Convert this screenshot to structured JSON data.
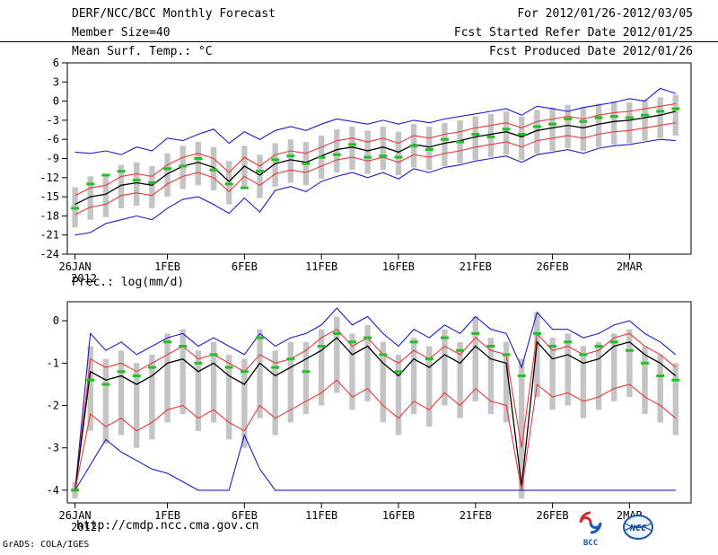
{
  "header": {
    "title": "DERF/NCC/BCC Monthly Forecast",
    "period": "For 2012/01/26-2012/03/05",
    "member_size": "Member Size=40",
    "refer_date": "Fcst Started Refer Date 2012/01/25",
    "produced_date": "Fcst Produced Date 2012/01/26"
  },
  "footer": {
    "url": "http://cmdp.ncc.cma.gov.cn",
    "credit": "GrADS: COLA/IGES",
    "logos": [
      {
        "name": "bcc-logo",
        "label": "BCC"
      },
      {
        "name": "ncc-logo",
        "label": "NCC"
      }
    ]
  },
  "colors": {
    "line_blue": "#1c1ccc",
    "line_red": "#e83838",
    "line_black": "#000000",
    "marker_green": "#22c022",
    "bar_gray": "#c4c4c4",
    "logo_blue": "#1a57b0",
    "logo_red": "#d03030"
  },
  "chart_data": [
    {
      "type": "line",
      "name": "mean-surface-temperature",
      "title": "Mean Surf. Temp.: °C",
      "x_start": "26JAN2012",
      "x_step_days": 1,
      "n_points": 40,
      "ylim": [
        -24,
        6
      ],
      "yticks": [
        6,
        3,
        0,
        -3,
        -6,
        -9,
        -12,
        -15,
        -18,
        -21,
        -24
      ],
      "xticks": [
        {
          "pos": 0,
          "label": "26JAN",
          "sub": "2012"
        },
        {
          "pos": 6,
          "label": "1FEB"
        },
        {
          "pos": 11,
          "label": "6FEB"
        },
        {
          "pos": 16,
          "label": "11FEB"
        },
        {
          "pos": 21,
          "label": "16FEB"
        },
        {
          "pos": 26,
          "label": "21FEB"
        },
        {
          "pos": 31,
          "label": "26FEB"
        },
        {
          "pos": 36,
          "label": "2MAR"
        }
      ],
      "bars": {
        "name": "ensemble-spread",
        "color": "#c4c4c4",
        "top": [
          -13.5,
          -11.8,
          -11.4,
          -10.0,
          -9.6,
          -10.2,
          -8.2,
          -7.0,
          -6.4,
          -7.2,
          -9.4,
          -7.0,
          -8.4,
          -6.6,
          -6.0,
          -6.4,
          -5.4,
          -4.4,
          -4.0,
          -4.6,
          -4.0,
          -4.8,
          -3.6,
          -4.0,
          -3.4,
          -3.0,
          -2.4,
          -2.0,
          -1.6,
          -2.4,
          -1.4,
          -1.0,
          -0.6,
          -1.0,
          -0.4,
          0.0,
          -0.2,
          0.2,
          0.6,
          1.0
        ],
        "bottom": [
          -19.8,
          -18.6,
          -18.2,
          -16.8,
          -16.4,
          -16.8,
          -15.0,
          -13.8,
          -13.2,
          -14.0,
          -16.2,
          -13.8,
          -15.2,
          -13.4,
          -12.8,
          -13.2,
          -12.2,
          -11.2,
          -10.8,
          -11.4,
          -10.8,
          -11.6,
          -10.4,
          -10.8,
          -10.2,
          -9.8,
          -9.2,
          -8.8,
          -8.4,
          -9.2,
          -8.2,
          -7.8,
          -7.4,
          -7.8,
          -7.2,
          -6.8,
          -6.6,
          -6.2,
          -5.8,
          -5.4
        ]
      },
      "series": [
        {
          "id": "ens-max",
          "name": "ensemble maximum",
          "color": "#1c1ccc",
          "style": "line",
          "values": [
            -8.0,
            -8.2,
            -7.8,
            -8.4,
            -7.2,
            -7.8,
            -5.8,
            -6.2,
            -5.2,
            -4.4,
            -6.6,
            -4.8,
            -6.0,
            -4.6,
            -4.0,
            -4.6,
            -3.6,
            -2.8,
            -3.2,
            -3.6,
            -3.0,
            -3.6,
            -3.0,
            -3.4,
            -2.8,
            -2.4,
            -2.0,
            -1.6,
            -1.2,
            -2.2,
            -0.8,
            -1.2,
            -1.6,
            -1.0,
            -0.6,
            -0.2,
            0.4,
            0.0,
            2.0,
            1.2
          ]
        },
        {
          "id": "upper-quartile",
          "name": "upper quartile",
          "color": "#e83838",
          "style": "line",
          "values": [
            -14.8,
            -13.6,
            -13.2,
            -11.8,
            -11.4,
            -11.8,
            -10.0,
            -8.8,
            -8.2,
            -9.0,
            -11.2,
            -8.8,
            -10.2,
            -8.4,
            -7.8,
            -8.2,
            -7.2,
            -6.2,
            -5.8,
            -6.4,
            -5.8,
            -6.6,
            -5.4,
            -5.8,
            -5.2,
            -4.8,
            -4.2,
            -3.8,
            -3.4,
            -4.2,
            -3.2,
            -2.8,
            -2.4,
            -2.8,
            -2.2,
            -1.8,
            -1.6,
            -1.2,
            -0.8,
            -0.4
          ]
        },
        {
          "id": "ens-mean",
          "name": "ensemble mean",
          "color": "#000000",
          "style": "line",
          "values": [
            -16.2,
            -15.0,
            -14.6,
            -13.2,
            -12.8,
            -13.2,
            -11.4,
            -10.2,
            -9.6,
            -10.4,
            -12.6,
            -10.2,
            -11.6,
            -9.8,
            -9.2,
            -9.6,
            -8.6,
            -7.6,
            -7.2,
            -7.8,
            -7.2,
            -8.0,
            -6.8,
            -7.2,
            -6.6,
            -6.2,
            -5.6,
            -5.2,
            -4.8,
            -5.6,
            -4.6,
            -4.2,
            -3.8,
            -4.2,
            -3.6,
            -3.2,
            -3.0,
            -2.6,
            -2.2,
            -1.6
          ]
        },
        {
          "id": "lower-quartile",
          "name": "lower quartile",
          "color": "#e83838",
          "style": "line",
          "values": [
            -17.8,
            -16.6,
            -16.2,
            -14.8,
            -14.4,
            -14.8,
            -13.0,
            -11.8,
            -11.2,
            -12.0,
            -14.2,
            -11.8,
            -13.2,
            -11.4,
            -10.8,
            -11.2,
            -10.2,
            -9.2,
            -8.8,
            -9.4,
            -8.8,
            -9.6,
            -8.4,
            -8.8,
            -8.2,
            -7.8,
            -7.2,
            -6.8,
            -6.4,
            -7.2,
            -6.2,
            -5.8,
            -5.4,
            -5.8,
            -5.2,
            -4.8,
            -4.6,
            -4.2,
            -3.8,
            -3.4
          ]
        },
        {
          "id": "ens-min",
          "name": "ensemble minimum",
          "color": "#1c1ccc",
          "style": "line",
          "values": [
            -21.0,
            -20.6,
            -19.2,
            -18.6,
            -18.0,
            -18.6,
            -16.8,
            -15.4,
            -15.0,
            -16.2,
            -17.6,
            -15.2,
            -17.4,
            -14.0,
            -13.4,
            -14.2,
            -12.6,
            -11.8,
            -11.2,
            -12.0,
            -11.2,
            -12.2,
            -10.6,
            -11.2,
            -10.4,
            -10.0,
            -9.4,
            -9.0,
            -8.6,
            -9.6,
            -8.4,
            -8.0,
            -7.6,
            -8.2,
            -7.4,
            -7.0,
            -6.8,
            -6.4,
            -6.0,
            -6.2
          ]
        },
        {
          "id": "median",
          "name": "ensemble median",
          "color": "#22c022",
          "style": "dash",
          "values": [
            -16.8,
            -13.0,
            -11.6,
            -11.0,
            -12.4,
            -12.8,
            -10.6,
            -10.2,
            -9.0,
            -10.8,
            -13.0,
            -13.6,
            -11.0,
            -9.2,
            -8.6,
            -9.8,
            -8.8,
            -8.4,
            -6.8,
            -8.8,
            -8.6,
            -8.8,
            -7.0,
            -7.6,
            -6.0,
            -6.4,
            -5.2,
            -5.6,
            -4.4,
            -5.2,
            -4.0,
            -3.6,
            -2.8,
            -3.2,
            -2.6,
            -2.4,
            -2.6,
            -2.2,
            -1.6,
            -1.2
          ]
        }
      ]
    },
    {
      "type": "line",
      "name": "precipitation",
      "title": "Prec.: log(mm/d)",
      "x_start": "26JAN2012",
      "x_step_days": 1,
      "n_points": 40,
      "ylim": [
        -4.3,
        0.45
      ],
      "yticks": [
        0,
        -1,
        -2,
        -3,
        -4
      ],
      "xticks": [
        {
          "pos": 0,
          "label": "26JAN",
          "sub": "2012"
        },
        {
          "pos": 6,
          "label": "1FEB"
        },
        {
          "pos": 11,
          "label": "6FEB"
        },
        {
          "pos": 16,
          "label": "11FEB"
        },
        {
          "pos": 21,
          "label": "16FEB"
        },
        {
          "pos": 26,
          "label": "21FEB"
        },
        {
          "pos": 31,
          "label": "26FEB"
        },
        {
          "pos": 36,
          "label": "2MAR"
        }
      ],
      "bars": {
        "name": "ensemble-spread",
        "color": "#c4c4c4",
        "top": [
          -3.8,
          -0.6,
          -0.9,
          -0.7,
          -1.0,
          -0.8,
          -0.3,
          -0.2,
          -0.7,
          -0.5,
          -0.8,
          -0.9,
          -0.2,
          -0.7,
          -0.5,
          -0.5,
          -0.2,
          0.1,
          -0.3,
          -0.1,
          -0.5,
          -0.8,
          -0.4,
          -0.6,
          -0.2,
          -0.5,
          0.1,
          -0.4,
          -0.5,
          -0.9,
          0.2,
          -0.4,
          -0.3,
          -0.6,
          -0.5,
          -0.3,
          -0.2,
          -0.6,
          -0.8,
          -1.0
        ],
        "bottom": [
          -4.2,
          -2.6,
          -2.9,
          -2.7,
          -3.0,
          -2.8,
          -2.4,
          -2.2,
          -2.6,
          -2.4,
          -2.8,
          -3.0,
          -2.3,
          -2.7,
          -2.4,
          -2.2,
          -2.0,
          -1.7,
          -2.1,
          -1.9,
          -2.4,
          -2.7,
          -2.2,
          -2.5,
          -2.0,
          -2.3,
          -1.9,
          -2.2,
          -2.4,
          -4.2,
          -1.8,
          -2.1,
          -2.0,
          -2.3,
          -2.1,
          -1.9,
          -1.8,
          -2.2,
          -2.4,
          -2.7
        ]
      },
      "series": [
        {
          "id": "ens-max",
          "name": "ensemble maximum",
          "color": "#1c1ccc",
          "style": "line",
          "values": [
            -4.0,
            -0.3,
            -0.7,
            -0.5,
            -0.8,
            -0.6,
            -0.4,
            -0.3,
            -0.6,
            -0.4,
            -0.6,
            -0.8,
            -0.3,
            -0.6,
            -0.4,
            -0.3,
            -0.1,
            0.3,
            -0.1,
            0.1,
            -0.3,
            -0.6,
            -0.2,
            -0.4,
            -0.1,
            -0.3,
            0.1,
            -0.2,
            -0.3,
            -1.1,
            0.2,
            -0.2,
            -0.2,
            -0.4,
            -0.3,
            -0.1,
            0.0,
            -0.3,
            -0.5,
            -0.8
          ]
        },
        {
          "id": "upper-quartile",
          "name": "upper quartile",
          "color": "#e83838",
          "style": "line",
          "values": [
            -4.0,
            -0.9,
            -1.1,
            -1.0,
            -1.2,
            -1.0,
            -0.8,
            -0.6,
            -0.9,
            -0.8,
            -1.0,
            -1.2,
            -0.8,
            -1.0,
            -0.9,
            -0.7,
            -0.4,
            -0.2,
            -0.6,
            -0.4,
            -0.8,
            -1.0,
            -0.7,
            -0.9,
            -0.6,
            -0.8,
            -0.4,
            -0.7,
            -0.8,
            -3.0,
            -0.3,
            -0.7,
            -0.6,
            -0.8,
            -0.7,
            -0.4,
            -0.3,
            -0.6,
            -0.8,
            -1.1
          ]
        },
        {
          "id": "ens-mean",
          "name": "ensemble mean",
          "color": "#000000",
          "style": "line",
          "values": [
            -4.0,
            -1.2,
            -1.4,
            -1.3,
            -1.5,
            -1.3,
            -1.0,
            -0.9,
            -1.2,
            -1.0,
            -1.3,
            -1.5,
            -1.0,
            -1.3,
            -1.1,
            -0.9,
            -0.7,
            -0.4,
            -0.8,
            -0.6,
            -1.0,
            -1.3,
            -0.9,
            -1.1,
            -0.8,
            -1.0,
            -0.6,
            -0.9,
            -1.0,
            -3.9,
            -0.5,
            -0.9,
            -0.8,
            -1.0,
            -0.9,
            -0.6,
            -0.5,
            -0.8,
            -1.0,
            -1.3
          ]
        },
        {
          "id": "lower-quartile",
          "name": "lower quartile",
          "color": "#e83838",
          "style": "line",
          "values": [
            -4.0,
            -2.2,
            -2.5,
            -2.3,
            -2.6,
            -2.4,
            -2.1,
            -2.0,
            -2.3,
            -2.1,
            -2.4,
            -2.6,
            -2.0,
            -2.3,
            -2.1,
            -1.9,
            -1.7,
            -1.4,
            -1.8,
            -1.6,
            -2.0,
            -2.3,
            -1.9,
            -2.1,
            -1.7,
            -2.0,
            -1.6,
            -1.9,
            -2.0,
            -4.0,
            -1.5,
            -1.8,
            -1.7,
            -1.9,
            -1.8,
            -1.6,
            -1.5,
            -1.8,
            -2.0,
            -2.3
          ]
        },
        {
          "id": "ens-min",
          "name": "ensemble minimum",
          "color": "#1c1ccc",
          "style": "line",
          "values": [
            -4.0,
            -3.4,
            -2.8,
            -3.1,
            -3.3,
            -3.5,
            -3.6,
            -3.8,
            -4.0,
            -4.0,
            -4.0,
            -2.7,
            -3.5,
            -4.0,
            -4.0,
            -4.0,
            -4.0,
            -4.0,
            -4.0,
            -4.0,
            -4.0,
            -4.0,
            -4.0,
            -4.0,
            -4.0,
            -4.0,
            -4.0,
            -4.0,
            -4.0,
            -4.0,
            -4.0,
            -4.0,
            -4.0,
            -4.0,
            -4.0,
            -4.0,
            -4.0,
            -4.0,
            -4.0,
            -4.0
          ]
        },
        {
          "id": "median",
          "name": "ensemble median",
          "color": "#22c022",
          "style": "dash",
          "values": [
            -4.0,
            -1.4,
            -1.5,
            -1.2,
            -1.3,
            -1.1,
            -0.5,
            -0.6,
            -1.0,
            -0.8,
            -1.1,
            -1.2,
            -0.4,
            -1.1,
            -0.9,
            -1.2,
            -0.6,
            -0.3,
            -0.5,
            -0.4,
            -0.8,
            -1.2,
            -0.5,
            -0.9,
            -0.4,
            -0.7,
            -0.3,
            -0.6,
            -0.8,
            -1.3,
            -0.3,
            -0.6,
            -0.5,
            -0.8,
            -0.6,
            -0.5,
            -0.7,
            -1.0,
            -1.3,
            -1.4
          ]
        }
      ]
    }
  ]
}
